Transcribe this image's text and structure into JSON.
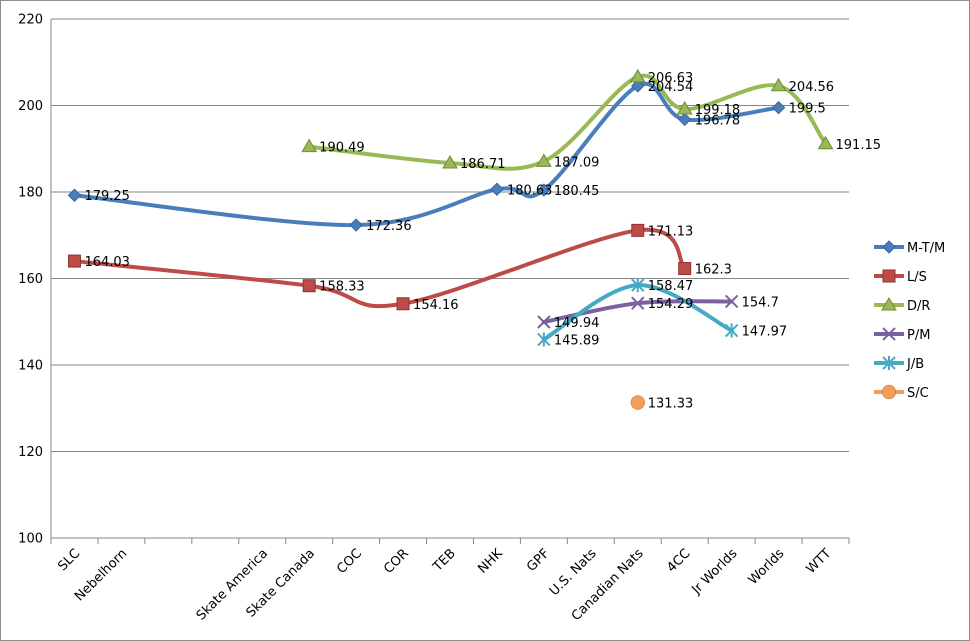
{
  "chart_data": {
    "type": "line",
    "categories": [
      "SLC",
      "Nebelhorn",
      "",
      "",
      "Skate America",
      "Skate Canada",
      "COC",
      "COR",
      "TEB",
      "NHK",
      "GPF",
      "U.S. Nats",
      "Canadian Nats",
      "4CC",
      "Jr Worlds",
      "Worlds",
      "WTT"
    ],
    "ylim": [
      100,
      220
    ],
    "yticks": [
      100,
      120,
      140,
      160,
      180,
      200,
      220
    ],
    "grid": true,
    "legend_position": "right",
    "series": [
      {
        "name": "M-T/M",
        "color": "#4a7ebb",
        "marker": "diamond",
        "values": [
          179.25,
          null,
          null,
          null,
          null,
          null,
          172.36,
          null,
          null,
          180.63,
          180.45,
          null,
          204.54,
          196.78,
          null,
          199.5,
          null
        ],
        "labels": [
          "179.25",
          null,
          null,
          null,
          null,
          null,
          "172.36",
          null,
          null,
          "180.63",
          "180.45",
          null,
          "204.54",
          "196.78",
          null,
          "199.5",
          null
        ]
      },
      {
        "name": "L/S",
        "color": "#be4b48",
        "marker": "square",
        "values": [
          164.03,
          null,
          null,
          null,
          null,
          158.33,
          null,
          154.16,
          null,
          null,
          null,
          null,
          171.13,
          162.3,
          null,
          null,
          null
        ],
        "labels": [
          "164.03",
          null,
          null,
          null,
          null,
          "158.33",
          null,
          "154.16",
          null,
          null,
          null,
          null,
          "171.13",
          "162.3",
          null,
          null,
          null
        ]
      },
      {
        "name": "D/R",
        "color": "#98b954",
        "marker": "triangle",
        "values": [
          null,
          null,
          null,
          null,
          null,
          190.49,
          null,
          null,
          186.71,
          null,
          187.09,
          null,
          206.63,
          199.18,
          null,
          204.56,
          191.15
        ],
        "labels": [
          null,
          null,
          null,
          null,
          null,
          "190.49",
          null,
          null,
          "186.71",
          null,
          "187.09",
          null,
          "206.63",
          "199.18",
          null,
          "204.56",
          "191.15"
        ]
      },
      {
        "name": "P/M",
        "color": "#7d60a0",
        "marker": "x",
        "values": [
          null,
          null,
          null,
          null,
          null,
          null,
          null,
          null,
          null,
          null,
          149.94,
          null,
          154.29,
          null,
          154.7,
          null,
          null
        ],
        "labels": [
          null,
          null,
          null,
          null,
          null,
          null,
          null,
          null,
          null,
          null,
          "149.94",
          null,
          "154.29",
          null,
          "154.7",
          null,
          null
        ]
      },
      {
        "name": "J/B",
        "color": "#46aac5",
        "marker": "star",
        "values": [
          null,
          null,
          null,
          null,
          null,
          null,
          null,
          null,
          null,
          null,
          145.89,
          null,
          158.47,
          null,
          147.97,
          null,
          null
        ],
        "labels": [
          null,
          null,
          null,
          null,
          null,
          null,
          null,
          null,
          null,
          null,
          "145.89",
          null,
          "158.47",
          null,
          "147.97",
          null,
          null
        ]
      },
      {
        "name": "S/C",
        "color": "#f59d56",
        "marker": "circle",
        "values": [
          null,
          null,
          null,
          null,
          null,
          null,
          null,
          null,
          null,
          null,
          null,
          null,
          131.33,
          null,
          null,
          null,
          null
        ],
        "labels": [
          null,
          null,
          null,
          null,
          null,
          null,
          null,
          null,
          null,
          null,
          null,
          null,
          "131.33",
          null,
          null,
          null,
          null
        ]
      }
    ]
  }
}
